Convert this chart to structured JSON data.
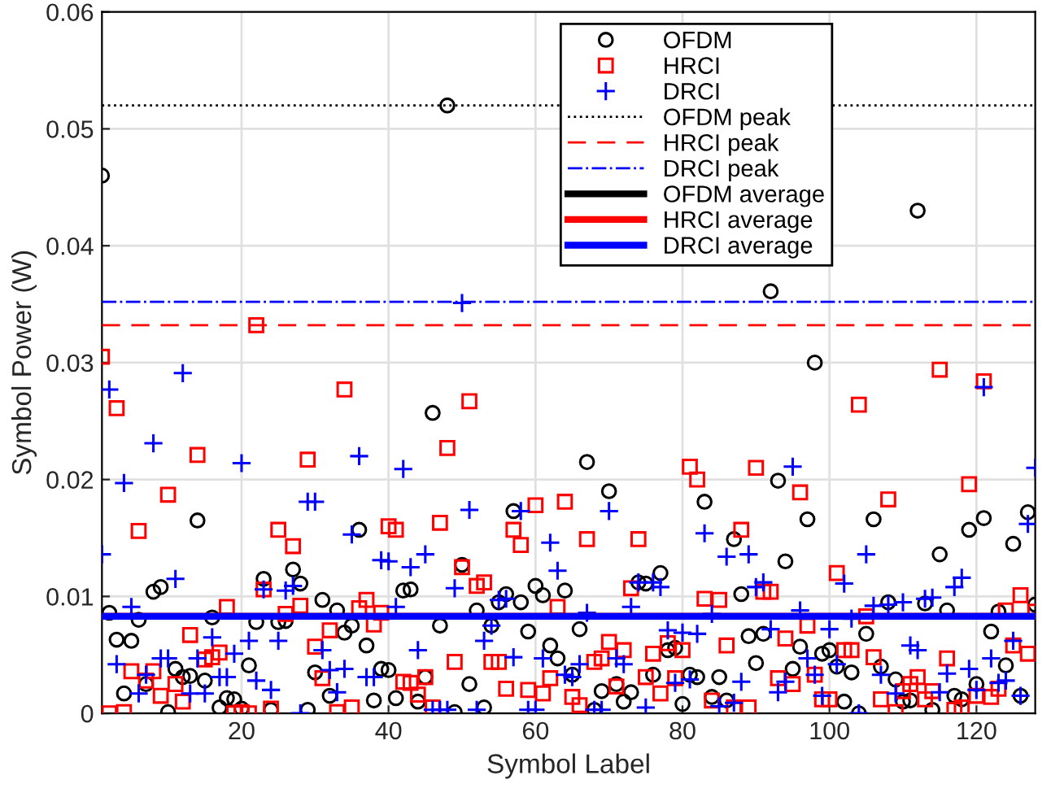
{
  "chart_data": {
    "type": "scatter",
    "xlabel": "Symbol Label",
    "ylabel": "Symbol Power (W)",
    "x": [
      1,
      2,
      3,
      4,
      5,
      6,
      7,
      8,
      9,
      10,
      11,
      12,
      13,
      14,
      15,
      16,
      17,
      18,
      19,
      20,
      21,
      22,
      23,
      24,
      25,
      26,
      27,
      28,
      29,
      30,
      31,
      32,
      33,
      34,
      35,
      36,
      37,
      38,
      39,
      40,
      41,
      42,
      43,
      44,
      45,
      46,
      47,
      48,
      49,
      50,
      51,
      52,
      53,
      54,
      55,
      56,
      57,
      58,
      59,
      60,
      61,
      62,
      63,
      64,
      65,
      66,
      67,
      68,
      69,
      70,
      71,
      72,
      73,
      74,
      75,
      76,
      77,
      78,
      79,
      80,
      81,
      82,
      83,
      84,
      85,
      86,
      87,
      88,
      89,
      90,
      91,
      92,
      93,
      94,
      95,
      96,
      97,
      98,
      99,
      100,
      101,
      102,
      103,
      104,
      105,
      106,
      107,
      108,
      109,
      110,
      111,
      112,
      113,
      114,
      115,
      116,
      117,
      118,
      119,
      120,
      121,
      122,
      123,
      124,
      125,
      126,
      127,
      128
    ],
    "series": [
      {
        "name": "OFDM",
        "color": "#000000",
        "marker": "circle",
        "values": [
          0.046,
          0.0086,
          0.0063,
          0.0017,
          0.0062,
          0.008,
          0.0025,
          0.0104,
          0.0108,
          0.0001,
          0.0038,
          0.0031,
          0.0032,
          0.0165,
          0.0028,
          0.0082,
          0.0005,
          0.0013,
          0.0012,
          0.0004,
          0.0041,
          0.0078,
          0.0115,
          0.0003,
          0.0078,
          0.0079,
          0.0123,
          0.0111,
          0.0003,
          0.0035,
          0.0097,
          0.0015,
          0.0088,
          0.0069,
          0.0075,
          0.0157,
          0.0058,
          0.0011,
          0.0038,
          0.0037,
          0.0013,
          0.0105,
          0.0106,
          0.001,
          0.0031,
          0.0257,
          0.0075,
          0.052,
          0.0001,
          0.0127,
          0.0025,
          0.0088,
          0.0005,
          0.0075,
          0.0095,
          0.0102,
          0.0173,
          0.0095,
          0.007,
          0.0109,
          0.0101,
          0.0058,
          0.0047,
          0.0105,
          0.0033,
          0.0072,
          0.0215,
          0.0003,
          0.0019,
          0.019,
          0.0025,
          0.001,
          0.0018,
          0.0112,
          0.0111,
          0.0033,
          0.012,
          0.0054,
          0.0056,
          0.0008,
          0.0033,
          0.0031,
          0.0181,
          0.0014,
          0.0031,
          0.0011,
          0.0149,
          0.0102,
          0.0066,
          0.0043,
          0.0068,
          0.0361,
          0.0199,
          0.013,
          0.0038,
          0.0057,
          0.0166,
          0.03,
          0.0051,
          0.0054,
          0.004,
          0.001,
          0.0035,
          0.0,
          0.0068,
          0.0166,
          0.004,
          0.0095,
          0.0029,
          0.001,
          0.0011,
          0.043,
          0.0094,
          0.0003,
          0.0136,
          0.0088,
          0.0015,
          0.0012,
          0.0157,
          0.0025,
          0.0167,
          0.007,
          0.0087,
          0.0041,
          0.0145,
          0.0015,
          0.0172,
          0.0093
        ]
      },
      {
        "name": "HRCI",
        "color": "#ff0000",
        "marker": "square",
        "values": [
          0.0305,
          0.0,
          0.0261,
          0.0001,
          0.0036,
          0.0156,
          0.0028,
          0.0036,
          0.0015,
          0.0187,
          0.0025,
          0.001,
          0.0067,
          0.0221,
          0.0046,
          0.0048,
          0.0052,
          0.0091,
          0.0,
          0.0001,
          0.0,
          0.0332,
          0.0106,
          0.0004,
          0.0157,
          0.0085,
          0.0143,
          0.0092,
          0.0217,
          0.0057,
          0.003,
          0.0071,
          0.0001,
          0.0277,
          0.0005,
          0.009,
          0.0097,
          0.0076,
          0.0086,
          0.016,
          0.0157,
          0.0027,
          0.0026,
          0.0016,
          0.0031,
          0.0005,
          0.0163,
          0.0227,
          0.0044,
          0.0125,
          0.0267,
          0.0109,
          0.0112,
          0.0044,
          0.0044,
          0.0021,
          0.0157,
          0.0144,
          0.002,
          0.0178,
          0.0017,
          0.003,
          0.0091,
          0.0181,
          0.0014,
          0.0007,
          0.0149,
          0.0044,
          0.0047,
          0.0061,
          0.0023,
          0.0054,
          0.0107,
          0.0149,
          0.0031,
          0.0051,
          0.0017,
          0.006,
          0.003,
          0.0054,
          0.0211,
          0.02,
          0.0098,
          0.0011,
          0.0097,
          0.0058,
          0.0005,
          0.0157,
          0.0005,
          0.021,
          0.0104,
          0.0104,
          0.003,
          0.0064,
          0.0025,
          0.0189,
          0.0075,
          0.0033,
          0.0012,
          0.0012,
          0.012,
          0.0054,
          0.0054,
          0.0264,
          0.0083,
          0.0048,
          0.0012,
          0.0183,
          0.0001,
          0.0019,
          0.0025,
          0.0031,
          0.0012,
          0.0019,
          0.0294,
          0.0047,
          0.0003,
          0.0005,
          0.0196,
          0.0015,
          0.0284,
          0.0014,
          0.0021,
          0.0088,
          0.0058,
          0.0101,
          0.0051,
          0.0087
        ]
      },
      {
        "name": "DRCI",
        "color": "#0000ff",
        "marker": "cross",
        "values": [
          0.0136,
          0.0277,
          0.0042,
          0.0197,
          0.0091,
          0.0017,
          0.0033,
          0.0231,
          0.0047,
          0.0047,
          0.0115,
          0.0291,
          0.0017,
          0.0047,
          0.0017,
          0.0065,
          0.0031,
          0.0031,
          0.0051,
          0.0214,
          0.0062,
          0.0028,
          0.0106,
          0.002,
          0.0062,
          0.0105,
          0.0109,
          0.0,
          0.0181,
          0.0181,
          0.0054,
          0.0037,
          0.0018,
          0.0038,
          0.0153,
          0.022,
          0.0031,
          0.0031,
          0.0131,
          0.013,
          0.0091,
          0.0209,
          0.0125,
          0.0054,
          0.0136,
          0.0003,
          0.0003,
          0.0003,
          0.0107,
          0.0351,
          0.0174,
          0.0003,
          0.0062,
          0.0075,
          0.0097,
          0.0098,
          0.0048,
          0.0173,
          0.0003,
          0.0003,
          0.0047,
          0.0146,
          0.0122,
          0.0033,
          0.0031,
          0.0042,
          0.0086,
          0.0003,
          0.0003,
          0.0173,
          0.0047,
          0.0042,
          0.0091,
          0.0112,
          0.0005,
          0.0112,
          0.0108,
          0.0071,
          0.0026,
          0.0069,
          0.0029,
          0.0068,
          0.0154,
          0.0085,
          0.0006,
          0.0134,
          0.0009,
          0.0027,
          0.0136,
          0.0108,
          0.0112,
          0.0072,
          0.0018,
          0.0027,
          0.0211,
          0.0088,
          0.0047,
          0.0033,
          0.0015,
          0.0072,
          0.0042,
          0.0111,
          0.0081,
          0.0,
          0.0136,
          0.0092,
          0.0033,
          0.0093,
          0.0017,
          0.0095,
          0.0058,
          0.0054,
          0.0098,
          0.0099,
          0.0018,
          0.0034,
          0.0108,
          0.0116,
          0.0038,
          0.002,
          0.0279,
          0.0047,
          0.0026,
          0.0028,
          0.0062,
          0.0015,
          0.0162,
          0.021
        ]
      }
    ],
    "ref_lines": [
      {
        "axis": "y",
        "value": 0.052,
        "label": "OFDM peak",
        "color": "#000000",
        "line_style": "dotted"
      },
      {
        "axis": "y",
        "value": 0.0332,
        "label": "HRCI peak",
        "color": "#ff0000",
        "line_style": "dashed"
      },
      {
        "axis": "y",
        "value": 0.0352,
        "label": "DRCI peak",
        "color": "#0000ff",
        "line_style": "dashdot"
      },
      {
        "axis": "y",
        "value": 0.0083,
        "label": "OFDM average",
        "color": "#000000",
        "line_style": "solid"
      },
      {
        "axis": "y",
        "value": 0.0083,
        "label": "HRCI average",
        "color": "#ff0000",
        "line_style": "solid"
      },
      {
        "axis": "y",
        "value": 0.0083,
        "label": "DRCI average",
        "color": "#0000ff",
        "line_style": "solid"
      }
    ],
    "xlim": [
      1,
      128
    ],
    "xticks": [
      20,
      40,
      60,
      80,
      100,
      120
    ],
    "ylim": [
      0,
      0.06
    ],
    "yticks": [
      0,
      0.01,
      0.02,
      0.03,
      0.04,
      0.05,
      0.06
    ],
    "grid": true,
    "legend": "top right"
  }
}
